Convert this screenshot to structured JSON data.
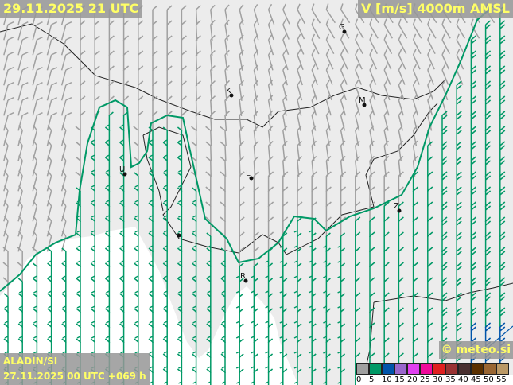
{
  "header": {
    "valid_time": "29.11.2025 21 UTC",
    "parameter": "V [m/s] 4000m AMSL"
  },
  "footer": {
    "model": "ALADIN/SI",
    "run": "27.11.2025 00 UTC +069 h",
    "credit": "© meteo.si"
  },
  "legend": {
    "unit": "m/s",
    "ticks": [
      "0",
      "5",
      "10",
      "15",
      "20",
      "25",
      "30",
      "35",
      "40",
      "45",
      "50",
      "55"
    ],
    "colors": [
      "#a0a0a0",
      "#009966",
      "#0055aa",
      "#9966cc",
      "#e040f0",
      "#f0099a",
      "#e02020",
      "#993333",
      "#4a3030",
      "#5a3000",
      "#996633",
      "#bb9966"
    ]
  },
  "map": {
    "land_color": "#ececec",
    "sea_color": "#ffffff",
    "contour_color": "#009966",
    "cities": [
      {
        "label": "G"
      },
      {
        "label": "K"
      },
      {
        "label": "M"
      },
      {
        "label": "L"
      },
      {
        "label": "U"
      },
      {
        "label": "Z"
      },
      {
        "label": "R"
      }
    ]
  }
}
